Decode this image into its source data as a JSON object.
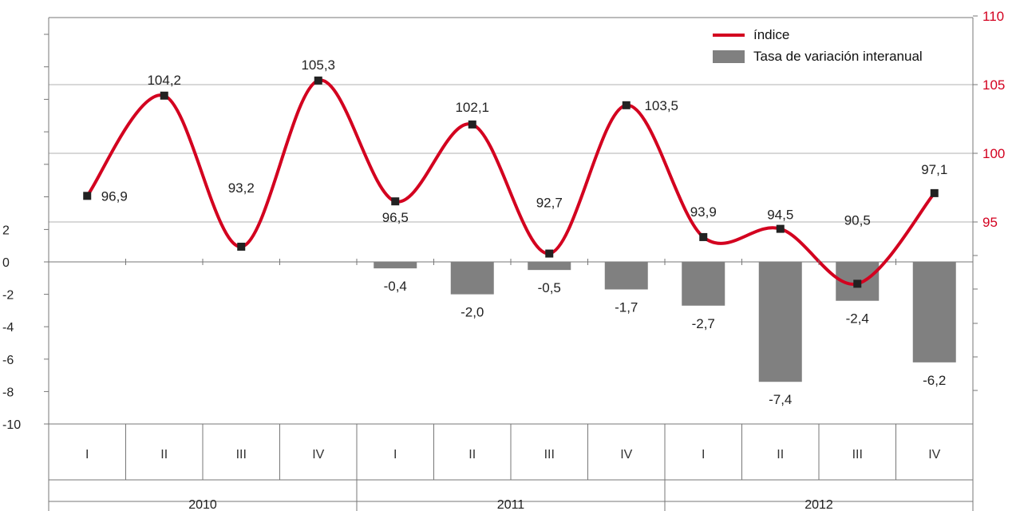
{
  "chart_data": {
    "type": "bar+line",
    "categories": [
      "I",
      "II",
      "III",
      "IV",
      "I",
      "II",
      "III",
      "IV",
      "I",
      "II",
      "III",
      "IV"
    ],
    "years": [
      "2010",
      "2011",
      "2012"
    ],
    "series": [
      {
        "name": "índice",
        "type": "line",
        "axis": "right",
        "values": [
          96.9,
          104.2,
          93.2,
          105.3,
          96.5,
          102.1,
          92.7,
          103.5,
          93.9,
          94.5,
          90.5,
          97.1
        ],
        "labels": [
          "96,9",
          "104,2",
          "93,2",
          "105,3",
          "96,5",
          "102,1",
          "92,7",
          "103,5",
          "93,9",
          "94,5",
          "90,5",
          "97,1"
        ]
      },
      {
        "name": "Tasa de variación interanual",
        "type": "bar",
        "axis": "left",
        "values": [
          null,
          null,
          null,
          null,
          -0.4,
          -2.0,
          -0.5,
          -1.7,
          -2.7,
          -7.4,
          -2.4,
          -6.2
        ],
        "labels": [
          "",
          "",
          "",
          "",
          "-0,4",
          "-2,0",
          "-0,5",
          "-1,7",
          "-2,7",
          "-7,4",
          "-2,4",
          "-6,2"
        ]
      }
    ],
    "left_axis": {
      "ylim": [
        -10,
        2
      ],
      "ticks": [
        "-10",
        "-8",
        "-6",
        "-4",
        "-2",
        "0",
        "2"
      ]
    },
    "right_axis": {
      "ylim": [
        95,
        110
      ],
      "ticks": [
        "95",
        "100",
        "105",
        "110"
      ]
    },
    "colors": {
      "line": "#d3001f",
      "bar": "#808080",
      "marker": "#222222",
      "right_axis_text": "#d3001f",
      "grid": "#b0b0b0"
    },
    "legend_position": "top-right",
    "grid": true
  }
}
